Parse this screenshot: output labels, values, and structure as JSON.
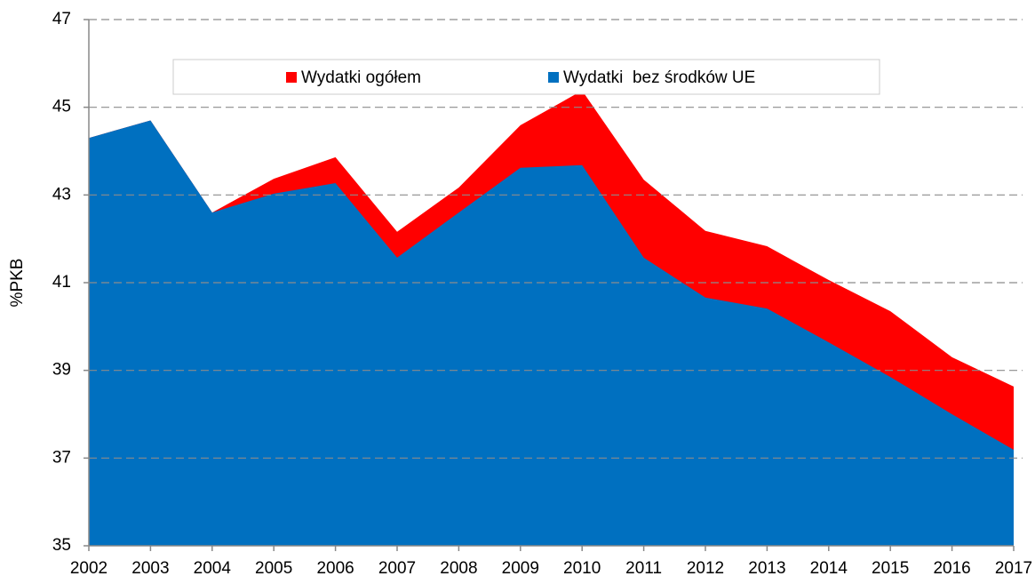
{
  "chart_data": {
    "type": "area",
    "y_label": "%PKB",
    "categories": [
      "2002",
      "2003",
      "2004",
      "2005",
      "2006",
      "2007",
      "2008",
      "2009",
      "2010",
      "2011",
      "2012",
      "2013",
      "2014",
      "2015",
      "2016",
      "2017"
    ],
    "series": [
      {
        "name": "Wydatki ogółem",
        "color": "#ff0000",
        "values": [
          44.3,
          44.7,
          42.6,
          43.37,
          43.86,
          42.16,
          43.17,
          44.59,
          45.38,
          43.35,
          42.18,
          41.83,
          41.06,
          40.35,
          39.3,
          38.63
        ]
      },
      {
        "name": "Wydatki  bez środków UE",
        "color": "#0070c0",
        "values": [
          44.3,
          44.7,
          42.6,
          43.03,
          43.27,
          41.57,
          42.6,
          43.62,
          43.68,
          41.57,
          40.66,
          40.41,
          39.64,
          38.85,
          38.0,
          37.19
        ]
      }
    ],
    "ylim": [
      35,
      47
    ],
    "yticks": [
      35,
      37,
      39,
      41,
      43,
      45,
      47
    ],
    "grid": true,
    "legend": "top"
  }
}
